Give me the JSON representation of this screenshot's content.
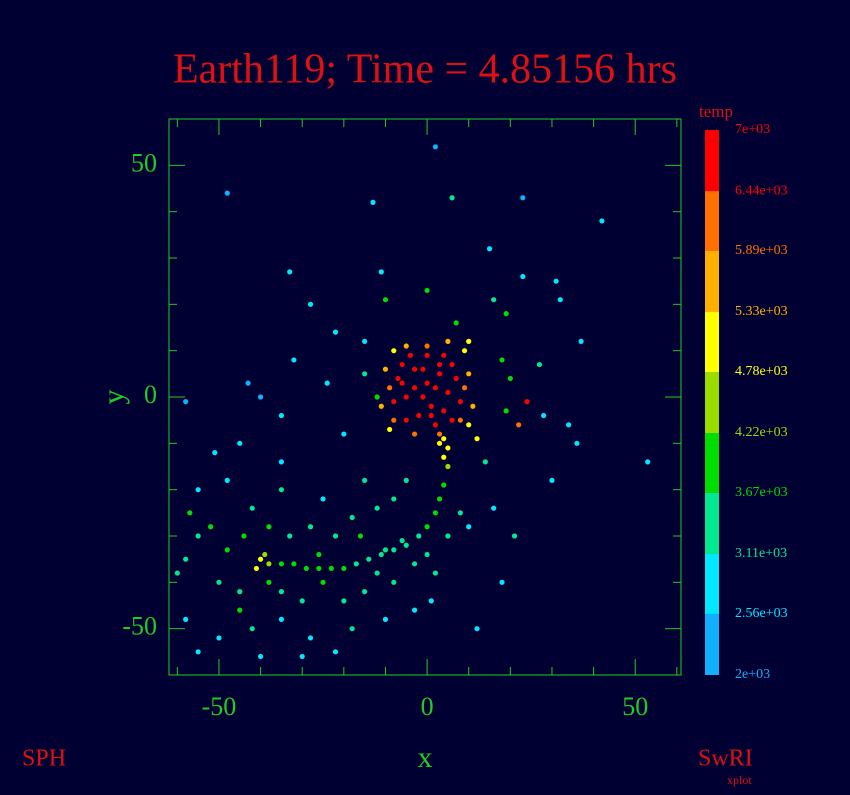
{
  "chart_data": {
    "type": "scatter",
    "title": "Earth119; Time = 4.85156 hrs",
    "xlabel": "x",
    "ylabel": "y",
    "footer_left": "SPH",
    "footer_right": "SwRI",
    "footer_sub": "xplot",
    "background": "#000033",
    "axis_color": "#22cc22",
    "title_color": "#dd1111",
    "xlim": [
      -62,
      61
    ],
    "ylim": [
      -60,
      60
    ],
    "xticks": [
      -50,
      0,
      50
    ],
    "yticks": [
      -50,
      0,
      50
    ],
    "minor_xticks": [
      -60,
      -40,
      -30,
      -20,
      -10,
      10,
      20,
      30,
      40,
      60
    ],
    "minor_yticks": [
      -60,
      -40,
      -30,
      -20,
      -10,
      10,
      20,
      30,
      40
    ],
    "colorbar": {
      "title": "temp",
      "ticks": [
        {
          "value": 2000,
          "label": "2e+03"
        },
        {
          "value": 2560,
          "label": "2.56e+03"
        },
        {
          "value": 3110,
          "label": "3.11e+03"
        },
        {
          "value": 3670,
          "label": "3.67e+03"
        },
        {
          "value": 4220,
          "label": "4.22e+03"
        },
        {
          "value": 4780,
          "label": "4.78e+03"
        },
        {
          "value": 5330,
          "label": "5.33e+03"
        },
        {
          "value": 5890,
          "label": "5.89e+03"
        },
        {
          "value": 6440,
          "label": "6.44e+03"
        },
        {
          "value": 7000,
          "label": "7e+03"
        }
      ],
      "colors": [
        "#10b0ff",
        "#00e8ff",
        "#00e890",
        "#00dd00",
        "#99dd00",
        "#ffff00",
        "#ffb000",
        "#ff7000",
        "#ff0000"
      ]
    },
    "x": [
      0,
      3,
      -3,
      5,
      -5,
      1,
      -2,
      4,
      7,
      -7,
      0,
      -4,
      4,
      8,
      -8,
      2,
      -5,
      6,
      -1,
      2,
      -3,
      6,
      -6,
      9,
      -9,
      0,
      3,
      -3,
      8,
      -8,
      10,
      -10,
      11,
      -11,
      5,
      -5,
      -8,
      9,
      -9,
      10,
      1,
      -6,
      3,
      -1,
      4,
      5,
      4,
      5,
      3,
      4,
      3,
      2,
      0,
      -2,
      -5,
      -8,
      -11,
      -14,
      -17,
      -20,
      -23,
      -26,
      -29,
      -32,
      -35,
      -38,
      -40,
      -41,
      -39,
      -10,
      -6,
      -55,
      -58,
      -50,
      -52,
      -45,
      -48,
      -44,
      -35,
      -30,
      -25,
      -20,
      -15,
      -12,
      -8,
      -3,
      0,
      2,
      5,
      8,
      10,
      -33,
      -38,
      -42,
      -28,
      -22,
      -18,
      -12,
      -8,
      -5,
      -15,
      -25,
      -35,
      -48,
      -55,
      -58,
      -50,
      -42,
      -35,
      -28,
      -22,
      -18,
      -10,
      -3,
      -30,
      -40,
      -55,
      -45,
      -38,
      -26,
      -16,
      -60,
      -57,
      2,
      -48,
      -13,
      6,
      23,
      42,
      -11,
      -33,
      -28,
      15,
      23,
      31,
      -10,
      0,
      16,
      -22,
      -15,
      7,
      19,
      32,
      37,
      -43,
      -40,
      -24,
      -58,
      -35,
      22,
      24,
      19,
      28,
      34,
      36,
      30,
      53,
      20,
      18,
      27,
      -20,
      -45,
      -51,
      -35,
      14,
      16,
      21,
      18,
      12,
      -32,
      10,
      12,
      -12,
      -15,
      1
    ],
    "values": [
      3,
      5,
      6,
      1,
      0,
      -2,
      -4,
      -3,
      4,
      4,
      9,
      9,
      9,
      -1,
      -1,
      -6,
      -5,
      -5,
      0,
      2,
      2,
      7,
      7,
      2,
      2,
      11,
      -8,
      -8,
      -5,
      -5,
      5,
      6,
      -2,
      -2,
      12,
      11,
      10,
      10,
      -7,
      -6,
      -4,
      3,
      7,
      6,
      -9,
      -11,
      -13,
      -15,
      -10,
      -19,
      -22,
      -25,
      -28,
      -30,
      -32,
      -33,
      -34,
      -35,
      -36,
      -37,
      -37,
      -37,
      -37,
      -36,
      -36,
      -36,
      -35,
      -37,
      -34,
      -33,
      -31,
      -30,
      -35,
      -40,
      -28,
      -42,
      -33,
      -30,
      -42,
      -44,
      -40,
      -44,
      -42,
      -38,
      -40,
      -36,
      -34,
      -38,
      -30,
      -25,
      -28,
      -30,
      -28,
      -24,
      -28,
      -30,
      -26,
      -24,
      -22,
      -18,
      -18,
      -22,
      -20,
      -18,
      -20,
      -48,
      -52,
      -50,
      -48,
      -52,
      -55,
      -50,
      -48,
      -46,
      -56,
      -56,
      -55,
      -46,
      -40,
      -34,
      -30,
      -38,
      -25,
      54,
      44,
      42,
      43,
      43,
      38,
      27,
      27,
      20,
      32,
      26,
      25,
      21,
      23,
      21,
      14,
      12,
      16,
      18,
      21,
      12,
      3,
      0,
      3,
      -1,
      -4,
      -6,
      -1,
      -3,
      -4,
      -6,
      -10,
      -18,
      -14,
      4,
      8,
      7,
      -8,
      -10,
      -12,
      -14,
      -14,
      -24,
      -30,
      -40,
      -50,
      8,
      12,
      -9,
      0,
      5,
      -44
    ],
    "temp": [
      6900,
      6900,
      6800,
      6800,
      6900,
      6700,
      6800,
      6900,
      6700,
      6800,
      6700,
      6600,
      6700,
      6800,
      6700,
      6600,
      6700,
      6600,
      6900,
      6900,
      6900,
      6500,
      6500,
      6300,
      6300,
      6200,
      6200,
      6100,
      6000,
      6000,
      5600,
      5600,
      5500,
      5600,
      5400,
      5500,
      5000,
      5200,
      5100,
      5000,
      6900,
      6900,
      6800,
      6900,
      5200,
      5000,
      4900,
      4500,
      5300,
      4000,
      3900,
      3800,
      3700,
      3600,
      3500,
      3400,
      3300,
      3400,
      3500,
      3800,
      3900,
      4000,
      3900,
      3800,
      3900,
      4500,
      5000,
      5200,
      4600,
      3200,
      3500,
      3600,
      3400,
      3500,
      3800,
      3300,
      3900,
      3700,
      3500,
      3400,
      3800,
      3300,
      3600,
      3200,
      3300,
      3400,
      3600,
      3300,
      3500,
      3300,
      3100,
      3600,
      3700,
      3500,
      3400,
      3500,
      3300,
      3400,
      3300,
      3600,
      3300,
      3100,
      3200,
      3000,
      3100,
      2900,
      3000,
      3300,
      3100,
      2900,
      2800,
      3200,
      3000,
      3100,
      2700,
      2800,
      2600,
      3700,
      4000,
      4100,
      3900,
      3500,
      3700,
      2400,
      2300,
      2600,
      3500,
      2500,
      2700,
      2800,
      2600,
      2900,
      2900,
      2700,
      2800,
      3900,
      3800,
      3300,
      2900,
      3100,
      4000,
      3800,
      3000,
      2800,
      2500,
      2400,
      2700,
      2400,
      2900,
      6300,
      6800,
      3700,
      3100,
      2900,
      3100,
      3000,
      2700,
      4200,
      3900,
      3500,
      3100,
      2900,
      3000,
      2800,
      3300,
      3000,
      3200,
      2900,
      3000,
      2700,
      4800,
      5200,
      4000,
      3600,
      3100
    ]
  }
}
